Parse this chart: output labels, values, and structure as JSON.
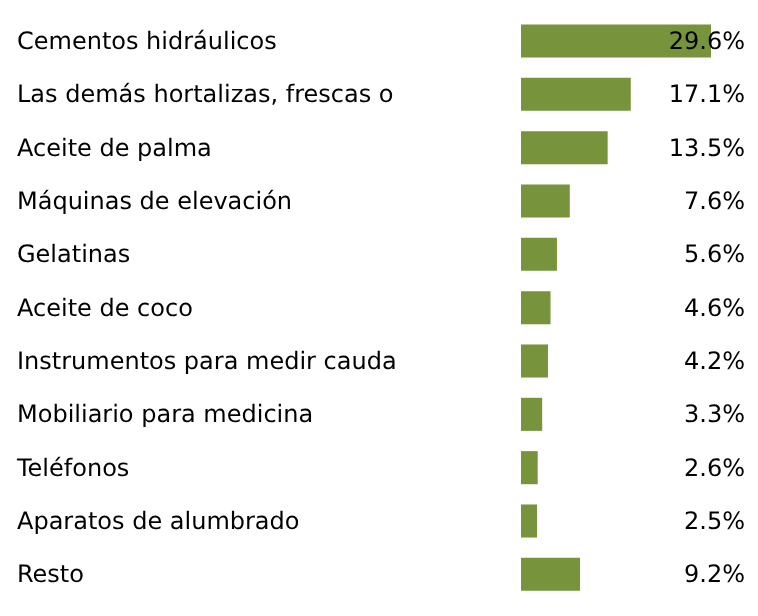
{
  "chart_data": {
    "type": "bar",
    "orientation": "horizontal",
    "data_labels": true,
    "categories": [
      "Cementos hidráulicos",
      "Las demás hortalizas, frescas o",
      "Aceite de palma",
      "Máquinas de elevación",
      "Gelatinas",
      "Aceite de coco",
      "Instrumentos para medir cauda",
      "Mobiliario para medicina",
      "Teléfonos",
      "Aparatos de alumbrado",
      "Resto"
    ],
    "values": [
      29.6,
      17.1,
      13.5,
      7.6,
      5.6,
      4.6,
      4.2,
      3.3,
      2.6,
      2.5,
      9.2
    ],
    "value_labels": [
      "29.6%",
      "17.1%",
      "13.5%",
      "7.6%",
      "5.6%",
      "4.6%",
      "4.2%",
      "3.3%",
      "2.6%",
      "2.5%",
      "9.2%"
    ],
    "color": "#77933c"
  }
}
